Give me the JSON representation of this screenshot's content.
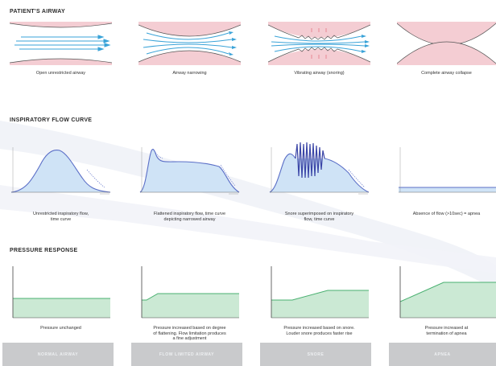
{
  "sections": {
    "airway_title": "PATIENT'S AIRWAY",
    "flow_title": "INSPIRATORY FLOW CURVE",
    "pressure_title": "PRESSURE RESPONSE"
  },
  "airway_panels": [
    {
      "caption": "Open unrestricted airway"
    },
    {
      "caption": "Airway narrowing"
    },
    {
      "caption": "Vibrating airway (snoring)"
    },
    {
      "caption": "Complete airway collapse"
    }
  ],
  "flow_panels": [
    {
      "caption_l1": "Unrestricted inspiratory flow,",
      "caption_l2": "time curve"
    },
    {
      "caption_l1": "Flattened inspiratory flow, time curve",
      "caption_l2": "depicting narrowed airway"
    },
    {
      "caption_l1": "Snore superimposed on inspiratory",
      "caption_l2": "flow, time curve"
    },
    {
      "caption_l1": "Absence of flow (>10sec) = apnea",
      "caption_l2": ""
    }
  ],
  "pressure_panels": [
    {
      "caption_l1": "Pressure unchanged",
      "caption_l2": "",
      "caption_l3": ""
    },
    {
      "caption_l1": "Pressure increased based on degree",
      "caption_l2": "of flattening. Flow limitation produces",
      "caption_l3": "a fine adjustment"
    },
    {
      "caption_l1": "Pressure increased based on snore.",
      "caption_l2": "Louder snore produces faster rise",
      "caption_l3": ""
    },
    {
      "caption_l1": "Pressure increased at",
      "caption_l2": "termination of apnea",
      "caption_l3": ""
    }
  ],
  "footer_tabs": [
    "NORMAL AIRWAY",
    "FLOW LIMITED AIRWAY",
    "SNORE",
    "APNEA"
  ],
  "colors": {
    "airway_tissue": "#f4cdd3",
    "flow_arrow": "#3aa3d8",
    "flow_fill": "#cfe3f6",
    "flow_line": "#5b6fc7",
    "pressure_fill": "#cbe9d4",
    "pressure_line": "#49b070",
    "footer": "#c9cacc"
  }
}
